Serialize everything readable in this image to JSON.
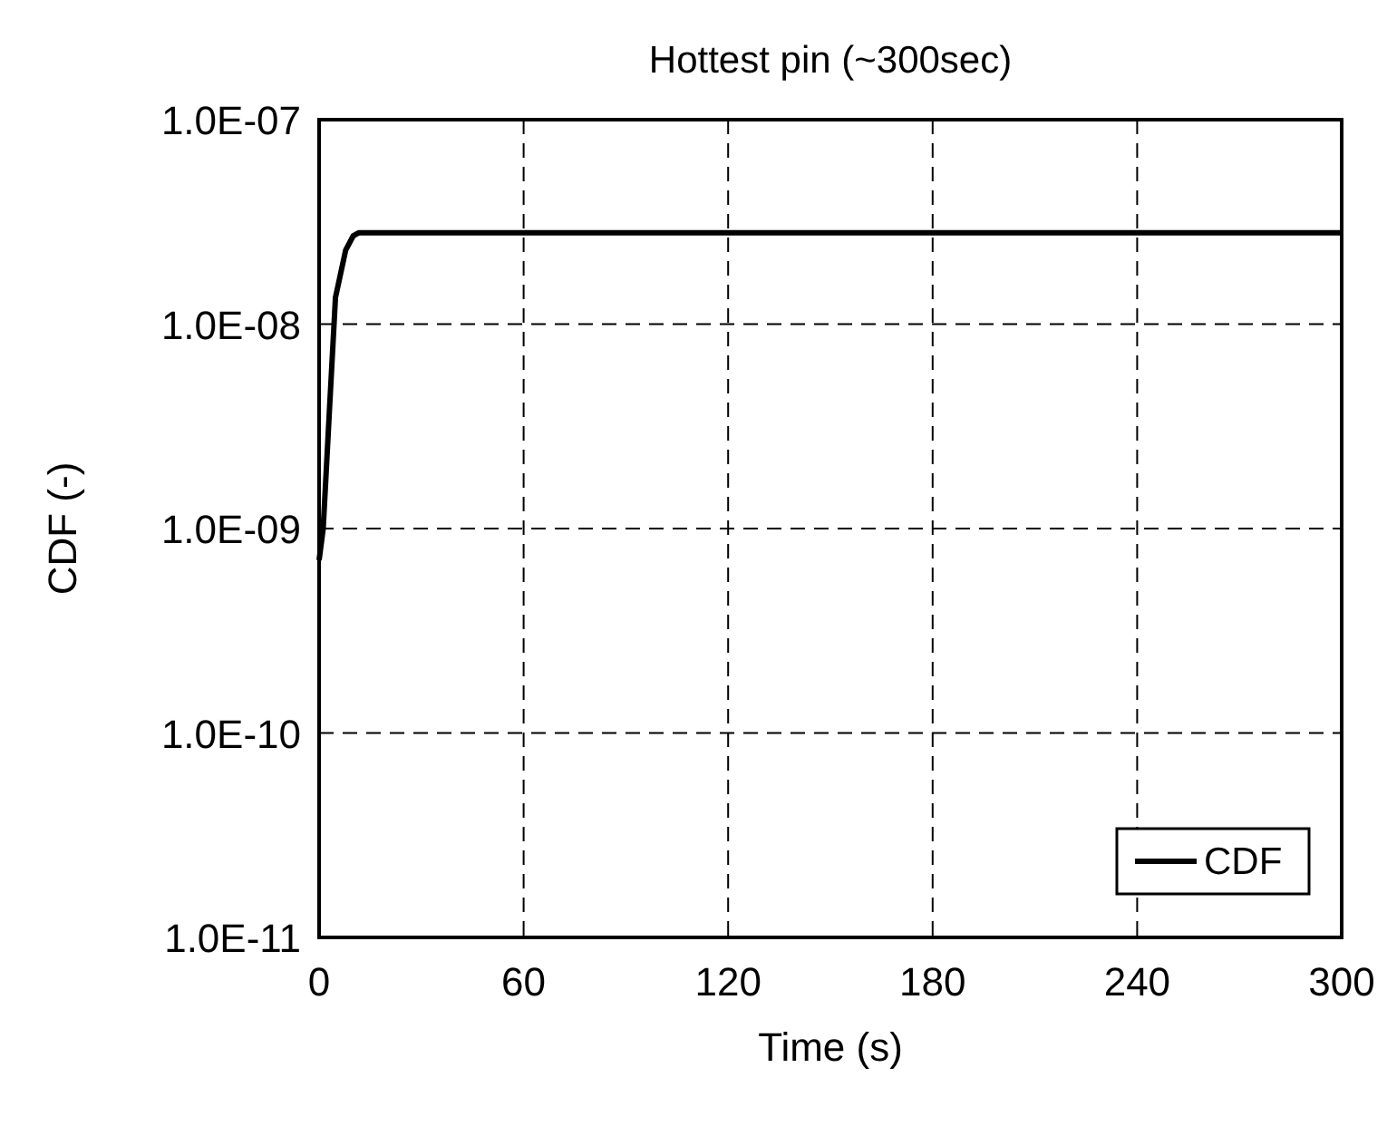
{
  "chart_data": {
    "type": "line",
    "title": "Hottest pin (~300sec)",
    "xlabel": "Time (s)",
    "ylabel": "CDF (-)",
    "series": [
      {
        "name": "CDF",
        "color": "#000000",
        "x": [
          0,
          1.2,
          3,
          4.8,
          7.8,
          10,
          11.7,
          300
        ],
        "values": [
          7e-10,
          1e-09,
          3.7e-09,
          1.35e-08,
          2.3e-08,
          2.7e-08,
          2.8e-08,
          2.8e-08
        ]
      }
    ],
    "xlim": [
      0,
      300
    ],
    "xticks": [
      0,
      60,
      120,
      180,
      240,
      300
    ],
    "ylim": [
      1e-11,
      1e-07
    ],
    "yticks": [
      {
        "value": 1e-11,
        "label": "1.0E-11"
      },
      {
        "value": 1e-10,
        "label": "1.0E-10"
      },
      {
        "value": 1e-09,
        "label": "1.0E-09"
      },
      {
        "value": 1e-08,
        "label": "1.0E-08"
      },
      {
        "value": 1e-07,
        "label": "1.0E-07"
      }
    ],
    "log": "y",
    "grid": true,
    "legend": "bottom right",
    "line_style": "solid",
    "marker": "none"
  }
}
